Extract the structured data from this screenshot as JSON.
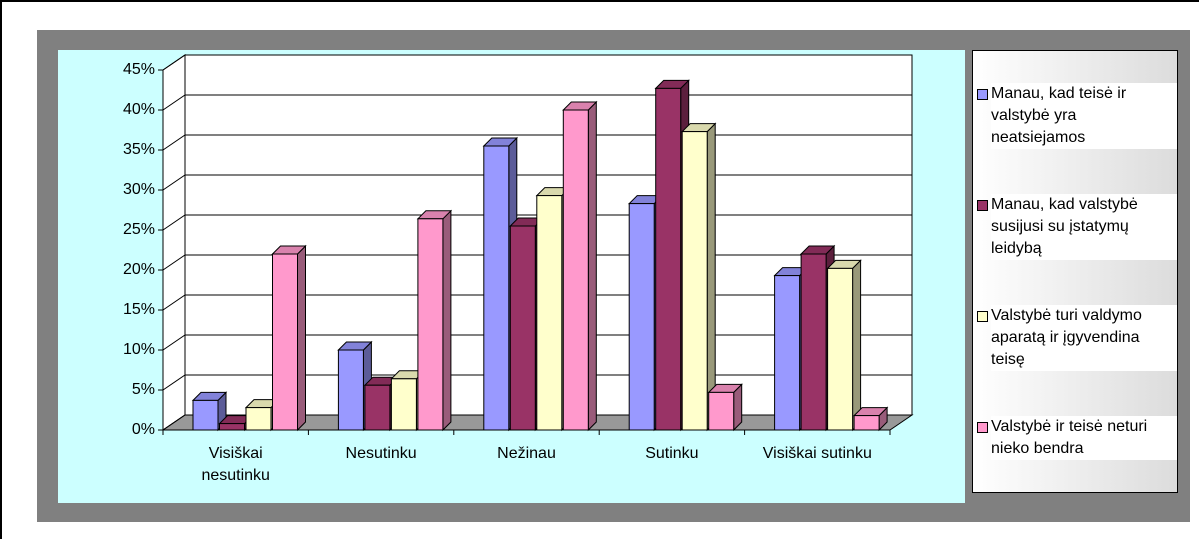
{
  "chart_data": {
    "type": "bar3d",
    "categories": [
      "Visiškai nesutinku",
      "Nesutinku",
      "Nežinau",
      "Sutinku",
      "Visiškai sutinku"
    ],
    "series": [
      {
        "name": "Manau, kad teisė ir valstybė yra neatsiejamos",
        "color": "#9999ff",
        "values": [
          3.7,
          10,
          35.5,
          28.3,
          19.3
        ]
      },
      {
        "name": "Manau, kad valstybė susijusi su įstatymų leidybą",
        "color": "#993366",
        "values": [
          0.8,
          5.6,
          25.5,
          42.7,
          22
        ]
      },
      {
        "name": "Valstybė turi valdymo aparatą ir įgyvendina teisę",
        "color": "#ffffcc",
        "values": [
          2.8,
          6.4,
          29.3,
          37.3,
          20.2
        ]
      },
      {
        "name": "Valstybė ir teisė neturi nieko bendra",
        "color": "#ff99cc",
        "values": [
          22,
          26.4,
          40,
          4.7,
          1.8
        ]
      }
    ],
    "ylim": [
      0,
      45
    ],
    "yticks": [
      {
        "value": 0,
        "label": "0%"
      },
      {
        "value": 5,
        "label": "5%"
      },
      {
        "value": 10,
        "label": "10%"
      },
      {
        "value": 15,
        "label": "15%"
      },
      {
        "value": 20,
        "label": "20%"
      },
      {
        "value": 25,
        "label": "25%"
      },
      {
        "value": 30,
        "label": "30%"
      },
      {
        "value": 35,
        "label": "35%"
      },
      {
        "value": 40,
        "label": "40%"
      },
      {
        "value": 45,
        "label": "45%"
      }
    ],
    "grid": true
  }
}
